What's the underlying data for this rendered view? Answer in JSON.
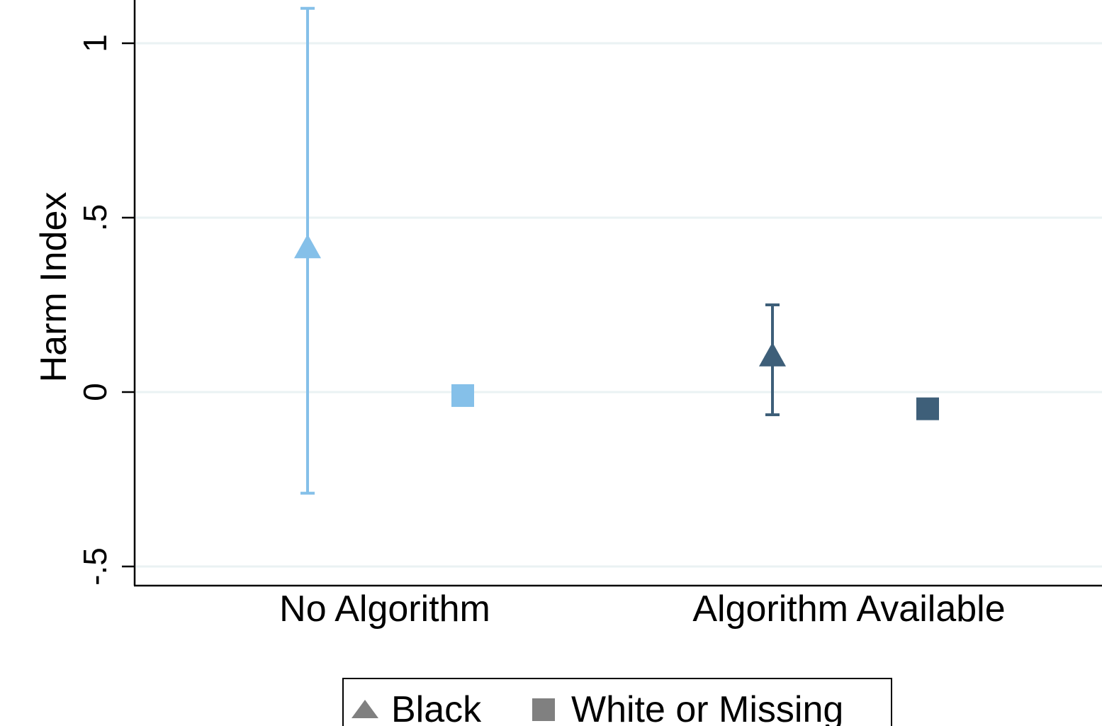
{
  "chart_data": {
    "type": "scatter",
    "title": "",
    "xlabel": "",
    "ylabel": "Harm Index",
    "categories": [
      "No Algorithm",
      "Algorithm Available"
    ],
    "ylim": [
      -0.55,
      1.12
    ],
    "yticks": [
      {
        "value": 1,
        "label": "1"
      },
      {
        "value": 0.5,
        "label": ".5"
      },
      {
        "value": 0,
        "label": "0"
      },
      {
        "value": -0.5,
        "label": "-.5"
      }
    ],
    "grid": true,
    "legend_position": "bottom",
    "category_colors": [
      "#85c0e9",
      "#3e5f79"
    ],
    "series": [
      {
        "name": "Black",
        "marker": "triangle",
        "points": [
          {
            "category": "No Algorithm",
            "y": 0.41,
            "ci_low": -0.29,
            "ci_high": 1.1
          },
          {
            "category": "Algorithm Available",
            "y": 0.1,
            "ci_low": -0.065,
            "ci_high": 0.25
          }
        ]
      },
      {
        "name": "White or Missing",
        "marker": "square",
        "points": [
          {
            "category": "No Algorithm",
            "y": -0.01
          },
          {
            "category": "Algorithm Available",
            "y": -0.048
          }
        ]
      }
    ]
  },
  "legend": {
    "items": [
      {
        "label": "Black",
        "icon": "triangle-icon",
        "color": "#808080"
      },
      {
        "label": "White or Missing",
        "icon": "square-icon",
        "color": "#808080"
      }
    ]
  }
}
